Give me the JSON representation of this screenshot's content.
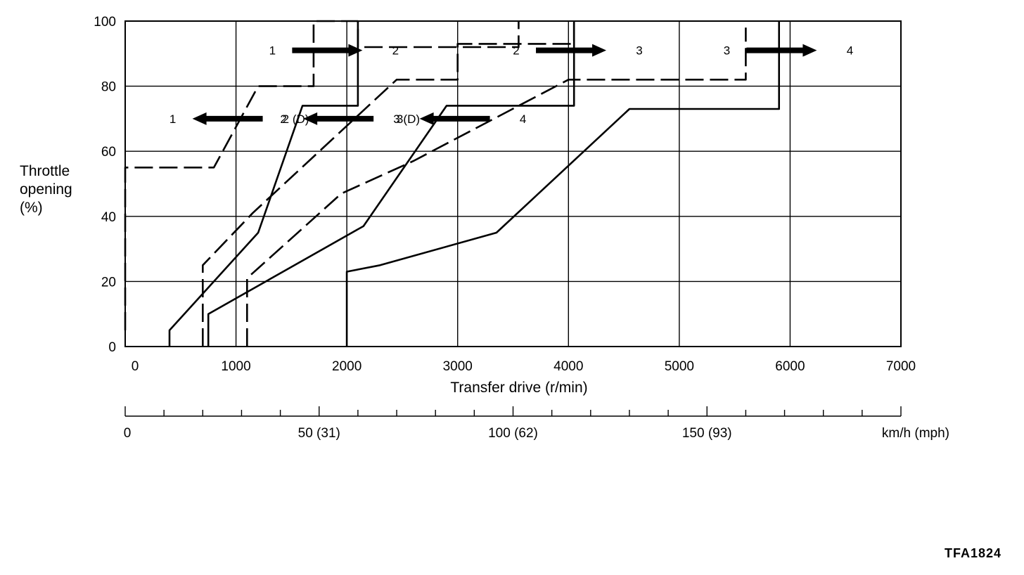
{
  "chart_data": {
    "type": "line",
    "title": "",
    "xlabel": "Transfer drive (r/min)",
    "ylabel": [
      "Throttle",
      "opening",
      "(%)"
    ],
    "xlim": [
      0,
      7000
    ],
    "ylim": [
      0,
      100
    ],
    "x_ticks": [
      0,
      1000,
      2000,
      3000,
      4000,
      5000,
      6000,
      7000
    ],
    "y_ticks": [
      0,
      20,
      40,
      60,
      80,
      100
    ],
    "grid": true,
    "secondary_axis": {
      "label": "km/h (mph)",
      "ticks": [
        {
          "value": 0,
          "label": "0"
        },
        {
          "value": 50,
          "label": "50 (31)"
        },
        {
          "value": 100,
          "label": "100 (62)"
        },
        {
          "value": 150,
          "label": "150 (93)"
        }
      ],
      "max": 200
    },
    "series": [
      {
        "style": "dashed",
        "x": [
          0,
          0,
          800,
          1200,
          1700,
          1700,
          2100,
          2100,
          3550,
          3550
        ],
        "y": [
          5,
          55,
          55,
          80,
          80,
          100,
          100,
          92,
          92,
          100
        ]
      },
      {
        "style": "solid",
        "x": [
          2100,
          2100,
          1600,
          1200,
          400,
          400
        ],
        "y": [
          100,
          74,
          74,
          35,
          5,
          0
        ]
      },
      {
        "style": "dashed",
        "x": [
          700,
          700,
          1150,
          2450,
          3000,
          3000,
          4050,
          4050
        ],
        "y": [
          0,
          25,
          41,
          82,
          82,
          93,
          93,
          100
        ]
      },
      {
        "style": "solid",
        "x": [
          750,
          750,
          2150,
          2900,
          4050,
          4050
        ],
        "y": [
          0,
          10,
          37,
          74,
          74,
          100
        ]
      },
      {
        "style": "dashed",
        "x": [
          1100,
          1100,
          1950,
          2600,
          4000,
          5600,
          5600
        ],
        "y": [
          0,
          21,
          47,
          57,
          82,
          82,
          98
        ]
      },
      {
        "style": "solid",
        "x": [
          2000,
          2000,
          2300,
          3350,
          4550,
          5900,
          5900
        ],
        "y": [
          0,
          23,
          25,
          35,
          73,
          73,
          100
        ]
      }
    ],
    "annotations": [
      {
        "from": "1",
        "to": "2",
        "direction": "right",
        "x": 1900,
        "y": 91
      },
      {
        "from": "1",
        "to": "2 (D)",
        "direction": "left",
        "x": 1000,
        "y": 70
      },
      {
        "from": "2",
        "to": "3 (D)",
        "direction": "left",
        "x": 2000,
        "y": 70
      },
      {
        "from": "2",
        "to": "3",
        "direction": "right",
        "x": 4100,
        "y": 91
      },
      {
        "from": "3",
        "to": "4",
        "direction": "left",
        "x": 3050,
        "y": 70
      },
      {
        "from": "3",
        "to": "4",
        "direction": "right",
        "x": 6000,
        "y": 91
      }
    ]
  },
  "figure_code": "TFA1824"
}
